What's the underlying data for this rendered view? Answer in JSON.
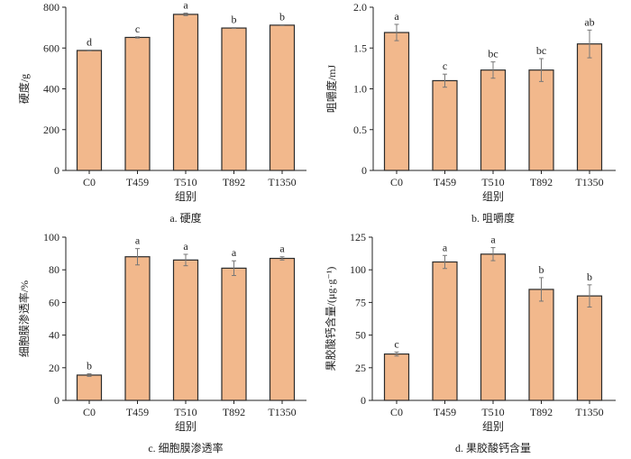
{
  "colors": {
    "bar_fill": "#f2b88c",
    "bar_stroke": "#2a2a2a",
    "error_bar": "#777777",
    "axis": "#222222"
  },
  "chart_data": [
    {
      "type": "bar",
      "caption": "a. 硬度",
      "xlabel": "组别",
      "ylabel": "硬度/g",
      "categories": [
        "C0",
        "T459",
        "T510",
        "T892",
        "T1350"
      ],
      "values": [
        588,
        652,
        765,
        698,
        712
      ],
      "errors": [
        2,
        3,
        6,
        2,
        2
      ],
      "significance": [
        "d",
        "c",
        "a",
        "b",
        "b"
      ],
      "ylim": [
        0,
        800
      ],
      "yticks": [
        0,
        200,
        400,
        600,
        800
      ],
      "ytick_labels": [
        "0",
        "200",
        "400",
        "600",
        "800"
      ],
      "grid": false
    },
    {
      "type": "bar",
      "caption": "b. 咀嚼度",
      "xlabel": "组别",
      "ylabel": "咀嚼度/mJ",
      "categories": [
        "C0",
        "T459",
        "T510",
        "T892",
        "T1350"
      ],
      "values": [
        1.69,
        1.1,
        1.23,
        1.23,
        1.55
      ],
      "errors": [
        0.1,
        0.08,
        0.1,
        0.14,
        0.17
      ],
      "significance": [
        "a",
        "c",
        "bc",
        "bc",
        "ab"
      ],
      "ylim": [
        0,
        2.0
      ],
      "yticks": [
        0,
        0.5,
        1.0,
        1.5,
        2.0
      ],
      "ytick_labels": [
        "0",
        "0.5",
        "1.0",
        "1.5",
        "2.0"
      ],
      "grid": false
    },
    {
      "type": "bar",
      "caption": "c. 细胞膜渗透率",
      "xlabel": "组别",
      "ylabel": "细胞膜渗透率/%",
      "categories": [
        "C0",
        "T459",
        "T510",
        "T892",
        "T1350"
      ],
      "values": [
        15.5,
        88,
        86,
        81,
        87
      ],
      "errors": [
        0.8,
        5,
        3.5,
        4.5,
        1
      ],
      "significance": [
        "b",
        "a",
        "a",
        "a",
        "a"
      ],
      "ylim": [
        0,
        100
      ],
      "yticks": [
        0,
        20,
        40,
        60,
        80,
        100
      ],
      "ytick_labels": [
        "0",
        "20",
        "40",
        "60",
        "80",
        "100"
      ],
      "grid": false
    },
    {
      "type": "bar",
      "caption": "d. 果胶酸钙含量",
      "xlabel": "组别",
      "ylabel": "果胶酸钙含量/(μg·g⁻¹)",
      "categories": [
        "C0",
        "T459",
        "T510",
        "T892",
        "T1350"
      ],
      "values": [
        35.5,
        106,
        112,
        85,
        80
      ],
      "errors": [
        1.5,
        5,
        5,
        9,
        8.5
      ],
      "significance": [
        "c",
        "a",
        "a",
        "b",
        "b"
      ],
      "ylim": [
        0,
        125
      ],
      "yticks": [
        0,
        25,
        50,
        75,
        100,
        125
      ],
      "ytick_labels": [
        "0",
        "25",
        "50",
        "75",
        "100",
        "125"
      ],
      "grid": false
    }
  ]
}
